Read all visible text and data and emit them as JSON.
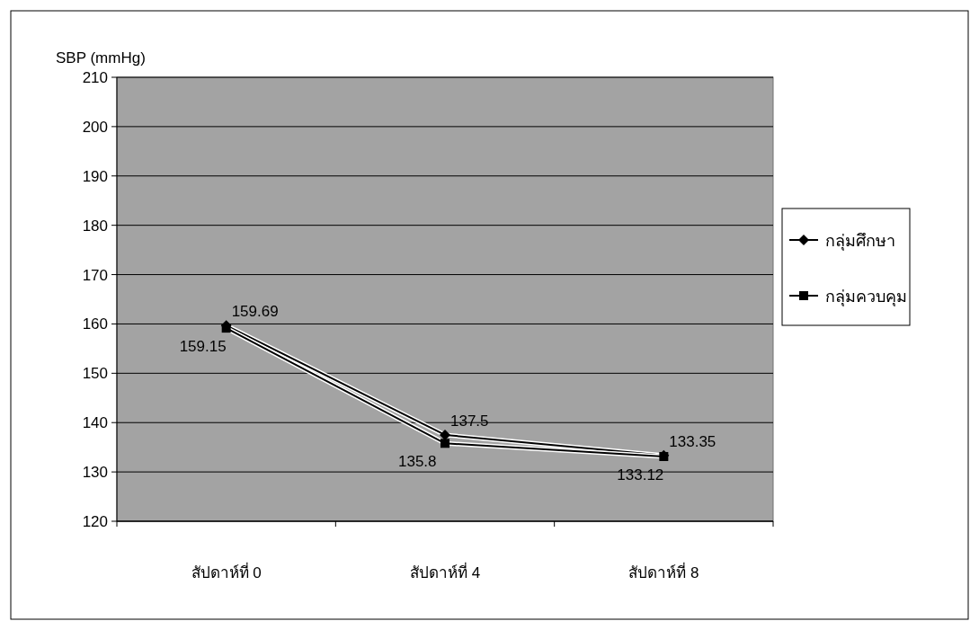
{
  "chart_data": {
    "type": "line",
    "ylabel": "SBP (mmHg)",
    "categories": [
      "สัปดาห์ที่ 0",
      "สัปดาห์ที่ 4",
      "สัปดาห์ที่ 8"
    ],
    "series": [
      {
        "name": "กลุ่มศึกษา",
        "color": "#000000",
        "marker": "diamond",
        "values": [
          159.69,
          137.5,
          133.35
        ]
      },
      {
        "name": "กลุ่มควบคุม",
        "color": "#000000",
        "marker": "square",
        "values": [
          159.15,
          135.8,
          133.12
        ]
      }
    ],
    "ylim": [
      120,
      210
    ],
    "yticks": [
      120,
      130,
      140,
      150,
      160,
      170,
      180,
      190,
      200,
      210
    ],
    "grid": "y",
    "legend": "right",
    "data_labels": true,
    "line_style": "solid"
  }
}
